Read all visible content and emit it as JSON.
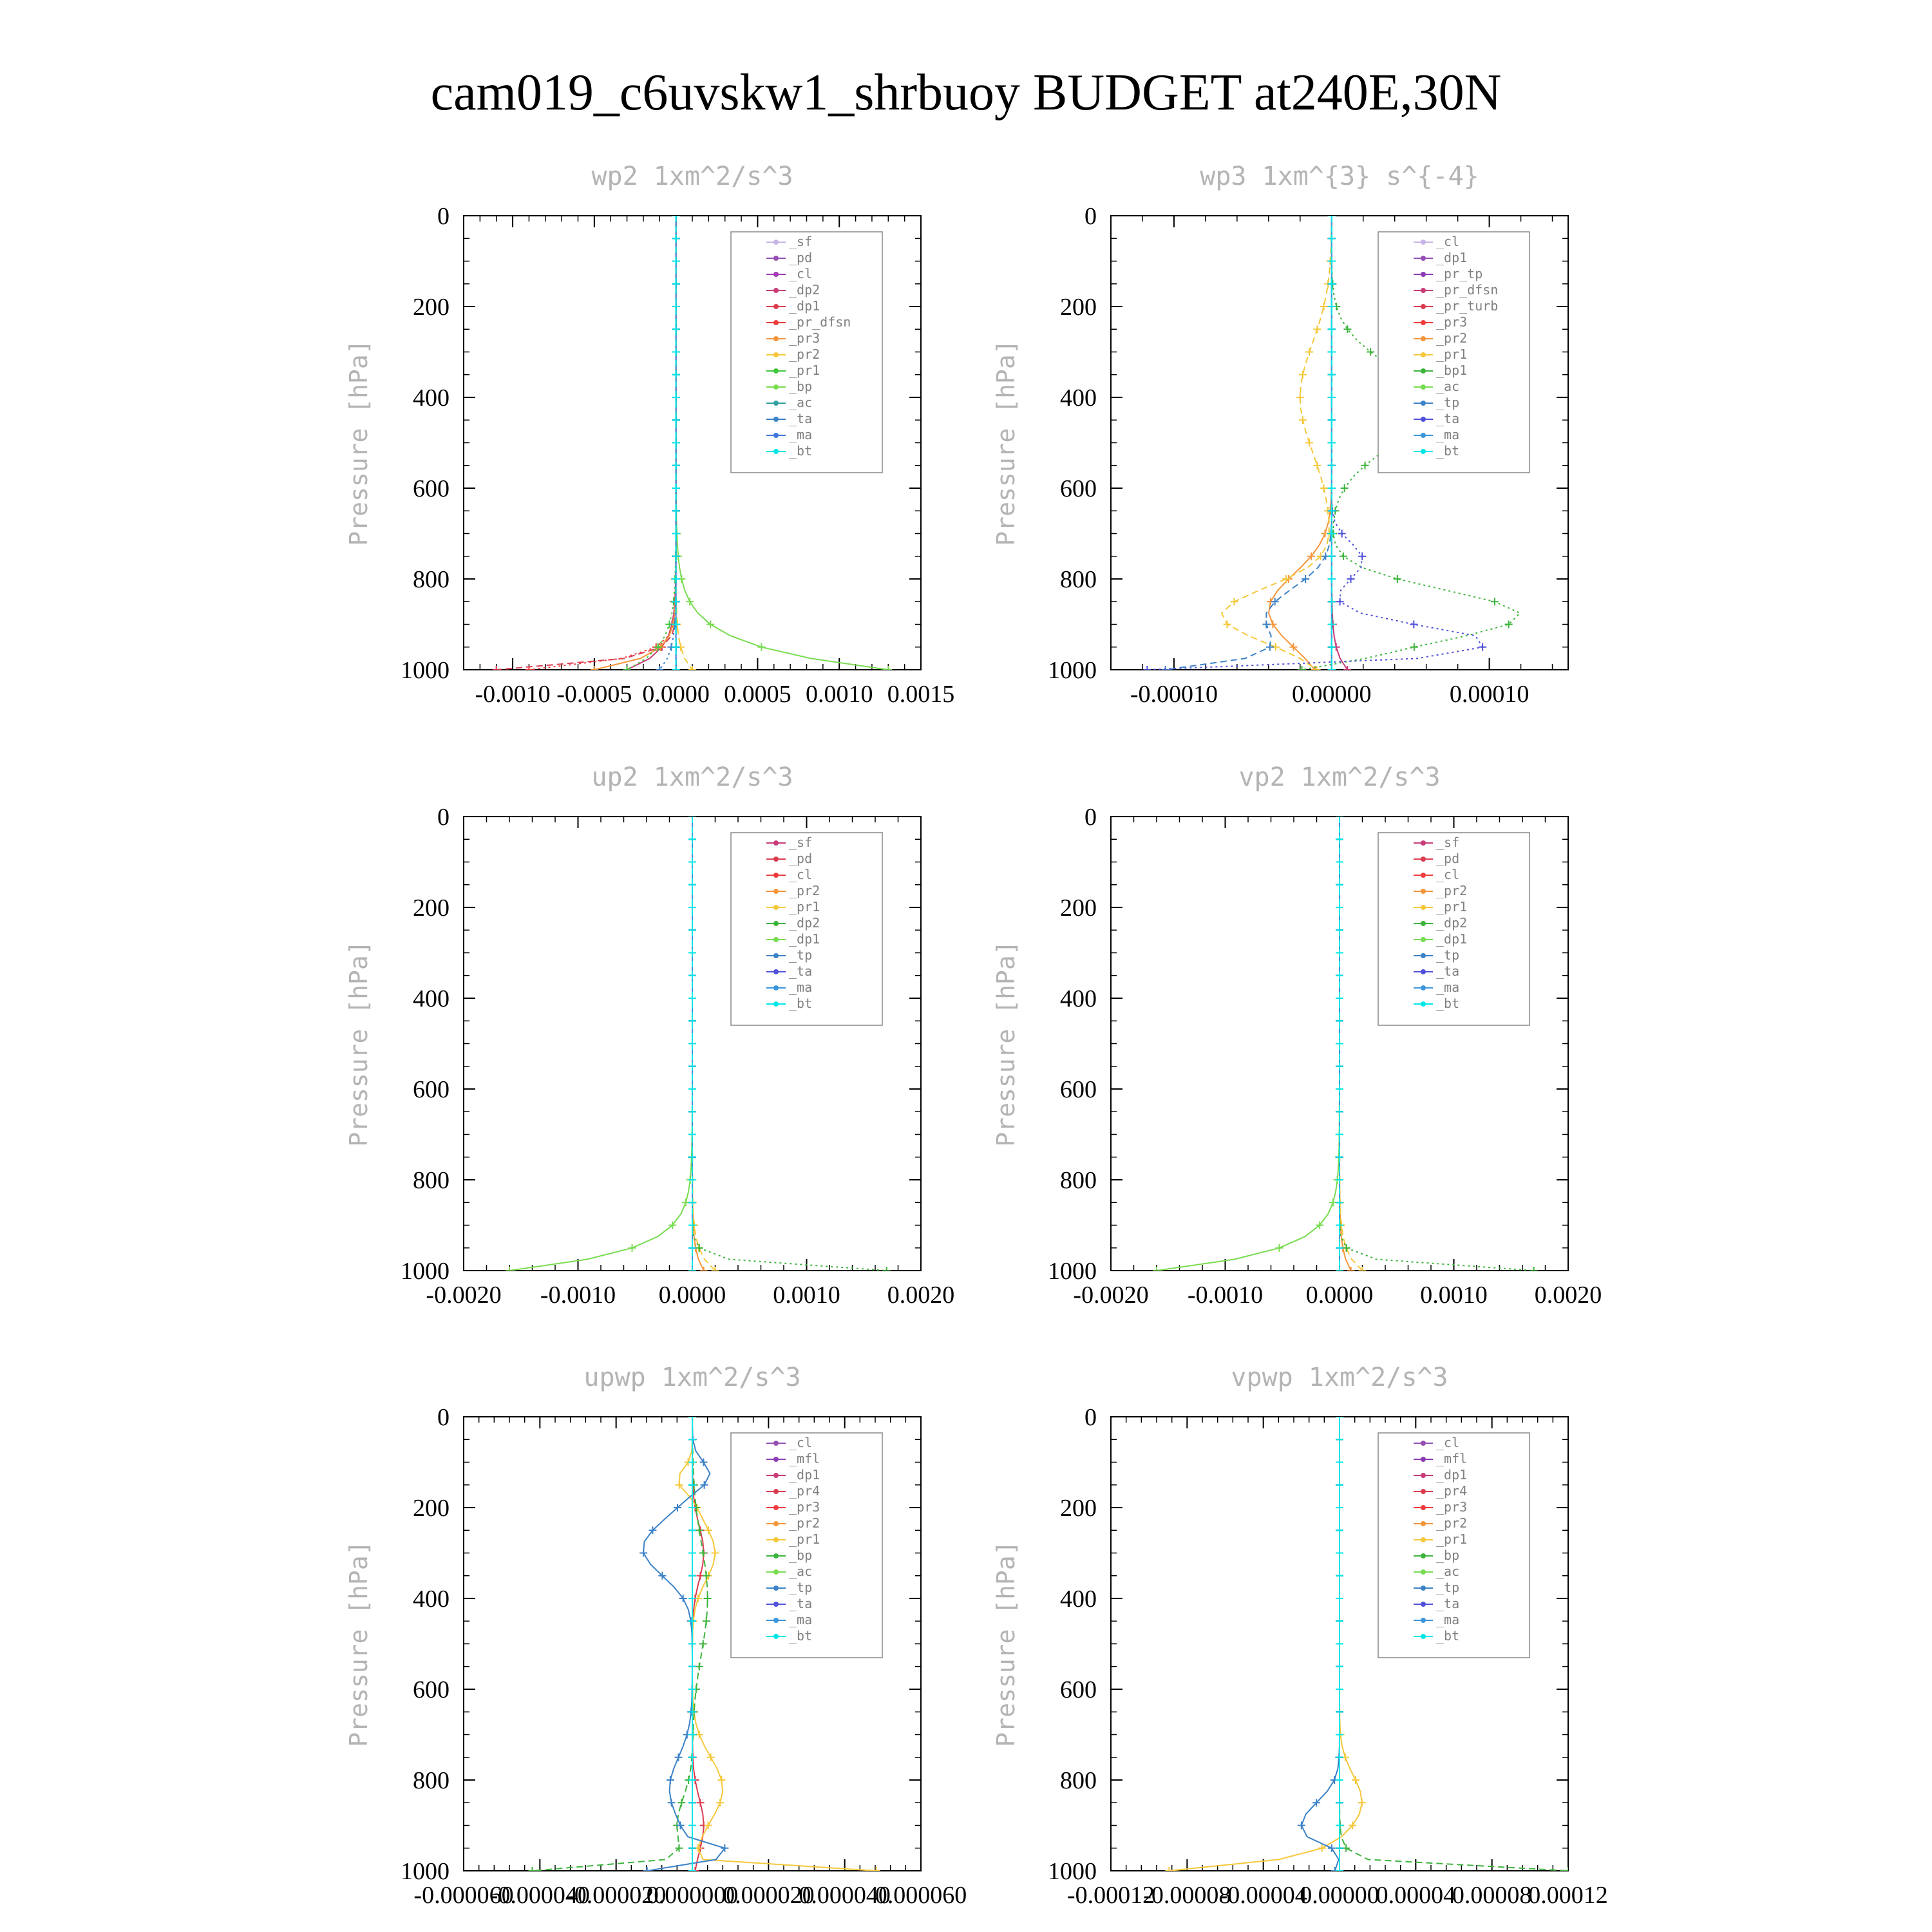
{
  "title": "cam019_c6uvskw1_shrbuoy  BUDGET at240E,30N",
  "chart_data": [
    {
      "type": "line",
      "title": "wp2   1xm^2/s^3",
      "ylabel": "Pressure [hPa]",
      "xlim": [
        -0.0013,
        0.0015
      ],
      "ylim": [
        1000,
        0
      ],
      "xticks": [
        -0.001,
        -0.0005,
        0.0,
        0.0005,
        0.001,
        0.0015
      ],
      "xtick_labels": [
        "-0.0010",
        "-0.0005",
        "0.0000",
        "0.0005",
        "0.0010",
        "0.0015"
      ],
      "yticks": [
        0,
        200,
        400,
        600,
        800,
        1000
      ],
      "legend_position": "top-right",
      "series": [
        {
          "name": "_sf",
          "color": "#c8b4e6",
          "shape": "zero"
        },
        {
          "name": "_pd",
          "color": "#9650b4",
          "shape": "zero"
        },
        {
          "name": "_cl",
          "color": "#a03cb4",
          "shape": "zero"
        },
        {
          "name": "_dp2",
          "color": "#c83c78",
          "shape": "neg",
          "amp": -0.0003,
          "scale": 40
        },
        {
          "name": "_dp1",
          "color": "#dc3c50",
          "shape": "neg",
          "amp": -0.0011,
          "scale": 20
        },
        {
          "name": "_pr_dfsn",
          "color": "#f03c3c",
          "shape": "neg",
          "amp": -0.0009,
          "scale": 25
        },
        {
          "name": "_pr3",
          "color": "#f5963c",
          "shape": "neg",
          "amp": -0.0005,
          "scale": 30
        },
        {
          "name": "_pr2",
          "color": "#f5c83c",
          "shape": "pos",
          "amp": 0.0001,
          "scale": 40
        },
        {
          "name": "_pr1",
          "color": "#3cc83c",
          "shape": "neg",
          "amp": -0.0003,
          "scale": 50
        },
        {
          "name": "_bp",
          "color": "#78dc50",
          "shape": "pos",
          "amp": 0.0013,
          "scale": 55
        },
        {
          "name": "_ac",
          "color": "#32a0a0",
          "shape": "zero"
        },
        {
          "name": "_ta",
          "color": "#3c82c8",
          "shape": "neg",
          "amp": -0.0001,
          "scale": 40
        },
        {
          "name": "_ma",
          "color": "#3c78dc",
          "shape": "zero"
        },
        {
          "name": "_bt",
          "color": "#00e6e6",
          "shape": "zero"
        }
      ]
    },
    {
      "type": "line",
      "title": "wp3   1xm^{3} s^{-4}",
      "ylabel": "Pressure [hPa]",
      "xlim": [
        -0.00014,
        0.00015
      ],
      "ylim": [
        1000,
        0
      ],
      "xticks": [
        -0.0001,
        0.0,
        0.0001
      ],
      "xtick_labels": [
        "-0.00010",
        "0.00000",
        "0.00010"
      ],
      "yticks": [
        0,
        200,
        400,
        600,
        800,
        1000
      ],
      "legend_position": "top-right",
      "series": [
        {
          "name": "_cl",
          "color": "#c8b4e6",
          "shape": "zero"
        },
        {
          "name": "_dp1",
          "color": "#9650b4",
          "shape": "zero"
        },
        {
          "name": "_pr_tp",
          "color": "#8c3cb4",
          "shape": "zero"
        },
        {
          "name": "_pr_dfsn",
          "color": "#c83c78",
          "shape": "pos",
          "amp": 1e-05,
          "scale": 40
        },
        {
          "name": "_pr_turb",
          "color": "#dc3c50",
          "shape": "zero"
        },
        {
          "name": "_pr3",
          "color": "#f03c3c",
          "shape": "zero"
        },
        {
          "name": "_pr2",
          "color": "#f5963c",
          "shape": "wp3_pr2"
        },
        {
          "name": "_pr1",
          "color": "#f5c83c",
          "shape": "wp3_pr1"
        },
        {
          "name": "_bp1",
          "color": "#3cb43c",
          "shape": "wp3_bp1"
        },
        {
          "name": "_ac",
          "color": "#78dc50",
          "shape": "zero"
        },
        {
          "name": "_tp",
          "color": "#3c82c8",
          "shape": "wp3_tp"
        },
        {
          "name": "_ta",
          "color": "#5050dc",
          "shape": "wp3_ta"
        },
        {
          "name": "_ma",
          "color": "#3c96dc",
          "shape": "zero"
        },
        {
          "name": "_bt",
          "color": "#00e6e6",
          "shape": "zero"
        }
      ]
    },
    {
      "type": "line",
      "title": "up2   1xm^2/s^3",
      "ylabel": "Pressure [hPa]",
      "xlim": [
        -0.002,
        0.002
      ],
      "ylim": [
        1000,
        0
      ],
      "xticks": [
        -0.002,
        -0.001,
        0.0,
        0.001,
        0.002
      ],
      "xtick_labels": [
        "-0.0020",
        "-0.0010",
        "0.0000",
        "0.0010",
        "0.0020"
      ],
      "yticks": [
        0,
        200,
        400,
        600,
        800,
        1000
      ],
      "legend_position": "top-right",
      "series": [
        {
          "name": "_sf",
          "color": "#c83c78",
          "shape": "zero"
        },
        {
          "name": "_pd",
          "color": "#dc3c50",
          "shape": "zero"
        },
        {
          "name": "_cl",
          "color": "#f03c3c",
          "shape": "zero"
        },
        {
          "name": "_pr2",
          "color": "#f5963c",
          "shape": "pos",
          "amp": 0.0001,
          "scale": 40
        },
        {
          "name": "_pr1",
          "color": "#f5c83c",
          "shape": "pos",
          "amp": 0.0002,
          "scale": 40
        },
        {
          "name": "_dp2",
          "color": "#3cb43c",
          "shape": "pos",
          "amp": 0.0017,
          "scale": 15
        },
        {
          "name": "_dp1",
          "color": "#78dc50",
          "shape": "neg",
          "amp": -0.0016,
          "scale": 45
        },
        {
          "name": "_tp",
          "color": "#3c82c8",
          "shape": "zero"
        },
        {
          "name": "_ta",
          "color": "#5050dc",
          "shape": "zero"
        },
        {
          "name": "_ma",
          "color": "#3c96dc",
          "shape": "zero"
        },
        {
          "name": "_bt",
          "color": "#00e6e6",
          "shape": "zero"
        }
      ]
    },
    {
      "type": "line",
      "title": "vp2   1xm^2/s^3",
      "ylabel": "Pressure [hPa]",
      "xlim": [
        -0.002,
        0.002
      ],
      "ylim": [
        1000,
        0
      ],
      "xticks": [
        -0.002,
        -0.001,
        0.0,
        0.001,
        0.002
      ],
      "xtick_labels": [
        "-0.0020",
        "-0.0010",
        "0.0000",
        "0.0010",
        "0.0020"
      ],
      "yticks": [
        0,
        200,
        400,
        600,
        800,
        1000
      ],
      "legend_position": "top-right",
      "series": [
        {
          "name": "_sf",
          "color": "#c83c78",
          "shape": "zero"
        },
        {
          "name": "_pd",
          "color": "#dc3c50",
          "shape": "zero"
        },
        {
          "name": "_cl",
          "color": "#f03c3c",
          "shape": "zero"
        },
        {
          "name": "_pr2",
          "color": "#f5963c",
          "shape": "pos",
          "amp": 0.0001,
          "scale": 40
        },
        {
          "name": "_pr1",
          "color": "#f5c83c",
          "shape": "pos",
          "amp": 0.0002,
          "scale": 40
        },
        {
          "name": "_dp2",
          "color": "#3cb43c",
          "shape": "pos",
          "amp": 0.0017,
          "scale": 15
        },
        {
          "name": "_dp1",
          "color": "#78dc50",
          "shape": "neg",
          "amp": -0.0016,
          "scale": 45
        },
        {
          "name": "_tp",
          "color": "#3c82c8",
          "shape": "zero"
        },
        {
          "name": "_ta",
          "color": "#5050dc",
          "shape": "zero"
        },
        {
          "name": "_ma",
          "color": "#3c96dc",
          "shape": "zero"
        },
        {
          "name": "_bt",
          "color": "#00e6e6",
          "shape": "zero"
        }
      ]
    },
    {
      "type": "line",
      "title": "upwp   1xm^2/s^3",
      "ylabel": "Pressure [hPa]",
      "xlim": [
        -6e-05,
        6e-05
      ],
      "ylim": [
        1000,
        0
      ],
      "xticks": [
        -6e-05,
        -4e-05,
        -2e-05,
        0.0,
        2e-05,
        4e-05,
        6e-05
      ],
      "xtick_labels": [
        "-0.000060",
        "-0.000040",
        "-0.000020",
        "0.000000",
        "0.000020",
        "0.000040",
        "0.000060"
      ],
      "yticks": [
        0,
        200,
        400,
        600,
        800,
        1000
      ],
      "legend_position": "top-right",
      "series": [
        {
          "name": "_cl",
          "color": "#9650b4",
          "shape": "zero"
        },
        {
          "name": "_mfl",
          "color": "#8c3cb4",
          "shape": "zero"
        },
        {
          "name": "_dp1",
          "color": "#c83c78",
          "shape": "zero"
        },
        {
          "name": "_pr4",
          "color": "#dc3c50",
          "shape": "upwp_pr4"
        },
        {
          "name": "_pr3",
          "color": "#f03c3c",
          "shape": "zero"
        },
        {
          "name": "_pr2",
          "color": "#f5963c",
          "shape": "zero"
        },
        {
          "name": "_pr1",
          "color": "#f5c83c",
          "shape": "upwp_pr1"
        },
        {
          "name": "_bp",
          "color": "#3cb43c",
          "shape": "upwp_bp"
        },
        {
          "name": "_ac",
          "color": "#78dc50",
          "shape": "zero"
        },
        {
          "name": "_tp",
          "color": "#3c82c8",
          "shape": "upwp_tp"
        },
        {
          "name": "_ta",
          "color": "#5050dc",
          "shape": "zero"
        },
        {
          "name": "_ma",
          "color": "#3c96dc",
          "shape": "zero"
        },
        {
          "name": "_bt",
          "color": "#00e6e6",
          "shape": "zero"
        }
      ]
    },
    {
      "type": "line",
      "title": "vpwp   1xm^2/s^3",
      "ylabel": "Pressure [hPa]",
      "xlim": [
        -0.00012,
        0.00012
      ],
      "ylim": [
        1000,
        0
      ],
      "xticks": [
        -0.00012,
        -8e-05,
        -4e-05,
        0.0,
        4e-05,
        8e-05,
        0.00012
      ],
      "xtick_labels": [
        "-0.00012",
        "-0.00008",
        "-0.00004",
        "0.00000",
        "0.00004",
        "0.00008",
        "0.00012"
      ],
      "yticks": [
        0,
        200,
        400,
        600,
        800,
        1000
      ],
      "legend_position": "top-right",
      "series": [
        {
          "name": "_cl",
          "color": "#9650b4",
          "shape": "zero"
        },
        {
          "name": "_mfl",
          "color": "#8c3cb4",
          "shape": "zero"
        },
        {
          "name": "_dp1",
          "color": "#c83c78",
          "shape": "zero"
        },
        {
          "name": "_pr4",
          "color": "#dc3c50",
          "shape": "zero"
        },
        {
          "name": "_pr3",
          "color": "#f03c3c",
          "shape": "zero"
        },
        {
          "name": "_pr2",
          "color": "#f5963c",
          "shape": "zero"
        },
        {
          "name": "_pr1",
          "color": "#f5c83c",
          "shape": "vpwp_pr1"
        },
        {
          "name": "_bp",
          "color": "#3cb43c",
          "shape": "vpwp_bp"
        },
        {
          "name": "_ac",
          "color": "#78dc50",
          "shape": "zero"
        },
        {
          "name": "_tp",
          "color": "#3c82c8",
          "shape": "vpwp_tp"
        },
        {
          "name": "_ta",
          "color": "#5050dc",
          "shape": "zero"
        },
        {
          "name": "_ma",
          "color": "#3c96dc",
          "shape": "zero"
        },
        {
          "name": "_bt",
          "color": "#00e6e6",
          "shape": "zero"
        }
      ]
    }
  ]
}
